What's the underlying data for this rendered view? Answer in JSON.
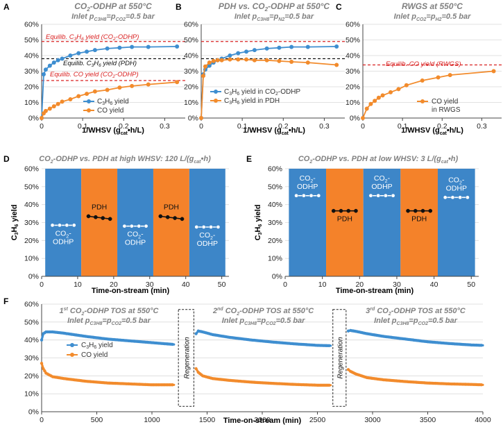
{
  "colors": {
    "blue": "#3e8ed0",
    "orange": "#f28b2c",
    "red": "#d92020",
    "black": "#111111",
    "gray_title": "#808080",
    "bar_blue": "#3d86c8",
    "bar_orange": "#f4822a"
  },
  "chart_data": [
    {
      "id": "A",
      "type": "line",
      "panel_letter": "A",
      "title_lines": [
        "CO2-ODHP at 550°C",
        "Inlet pC3H8=pCO2=0.5 bar"
      ],
      "xlabel": "1/WHSV (gcat•h/L)",
      "ylabel": "",
      "xlim": [
        0,
        0.35
      ],
      "ylim": [
        0,
        60
      ],
      "xticks": [
        0,
        0.1,
        0.2,
        0.3
      ],
      "xtick_labels": [
        "0",
        "0.1",
        "0.2",
        "0.3"
      ],
      "yticks": [
        0,
        10,
        20,
        30,
        40,
        50,
        60
      ],
      "ytick_labels": [
        "0%",
        "10%",
        "20%",
        "30%",
        "40%",
        "50%",
        "60%"
      ],
      "series": [
        {
          "name": "C3H6 yield",
          "color": "blue",
          "x": [
            0,
            0.005,
            0.01,
            0.02,
            0.03,
            0.04,
            0.05,
            0.07,
            0.09,
            0.11,
            0.13,
            0.16,
            0.19,
            0.22,
            0.26,
            0.33
          ],
          "y": [
            0,
            28,
            31,
            33.5,
            35.5,
            37,
            38,
            40,
            41.5,
            42.5,
            43.5,
            44.5,
            45,
            45.5,
            45.5,
            45.8
          ]
        },
        {
          "name": "CO yield",
          "color": "orange",
          "x": [
            0,
            0.005,
            0.01,
            0.02,
            0.03,
            0.04,
            0.05,
            0.07,
            0.09,
            0.11,
            0.13,
            0.16,
            0.19,
            0.22,
            0.26,
            0.33
          ],
          "y": [
            0,
            3,
            4.5,
            6,
            7.5,
            9,
            10.5,
            12,
            14,
            15.5,
            17,
            18,
            19.5,
            20.5,
            21.5,
            23
          ]
        }
      ],
      "hlines": [
        {
          "y": 49,
          "color": "red",
          "label": "Equilib. C3H6 yield (CO2-ODHP)"
        },
        {
          "y": 38,
          "color": "black",
          "label": "Equilib. C3H6 yield (PDH)"
        },
        {
          "y": 24,
          "color": "red",
          "label": "Equilib. CO yield (CO2-ODHP)"
        }
      ],
      "legend": [
        "C3H6 yield",
        "CO yield"
      ],
      "legend_position": "center-right"
    },
    {
      "id": "B",
      "type": "line",
      "panel_letter": "B",
      "title_lines": [
        "PDH vs. CO2-ODHP at 550°C",
        "Inlet pC3H8=pN2=0.5 bar"
      ],
      "xlabel": "1/WHSV (gcat•h/L)",
      "xlim": [
        0,
        0.35
      ],
      "ylim": [
        0,
        60
      ],
      "xticks": [
        0,
        0.1,
        0.2,
        0.3
      ],
      "xtick_labels": [
        "0",
        "0.1",
        "0.2",
        "0.3"
      ],
      "yticks": [
        0,
        10,
        20,
        30,
        40,
        50,
        60
      ],
      "ytick_labels": [
        "0%",
        "10%",
        "20%",
        "30%",
        "40%",
        "50%",
        "60%"
      ],
      "series": [
        {
          "name": "C3H6 yield in CO2-ODHP",
          "color": "blue",
          "x": [
            0,
            0.005,
            0.01,
            0.02,
            0.03,
            0.04,
            0.05,
            0.07,
            0.09,
            0.11,
            0.13,
            0.16,
            0.19,
            0.22,
            0.26,
            0.33
          ],
          "y": [
            0,
            28,
            31,
            33.5,
            35.5,
            37,
            38,
            40,
            41.5,
            42.5,
            43.5,
            44.5,
            45,
            45.5,
            45.5,
            45.8
          ]
        },
        {
          "name": "C3H6 yield in PDH",
          "color": "orange",
          "x": [
            0,
            0.005,
            0.01,
            0.02,
            0.03,
            0.04,
            0.05,
            0.07,
            0.09,
            0.11,
            0.13,
            0.16,
            0.19,
            0.22,
            0.26,
            0.33
          ],
          "y": [
            0,
            27,
            33,
            35.5,
            36.5,
            37,
            37,
            37.5,
            37.5,
            37.5,
            37,
            37,
            36.5,
            36,
            35.5,
            34
          ]
        }
      ],
      "hlines": [
        {
          "y": 49,
          "color": "red"
        },
        {
          "y": 38,
          "color": "black"
        }
      ],
      "legend": [
        "C3H6 yield in CO2-ODHP",
        "C3H6 yield in PDH"
      ],
      "legend_position": "center-right"
    },
    {
      "id": "C",
      "type": "line",
      "panel_letter": "C",
      "title_lines": [
        "RWGS at 550°C",
        "Inlet pCO2=pH2=0.5 bar"
      ],
      "xlabel": "1/WHSV (gcat•h/L)",
      "xlim": [
        0,
        0.35
      ],
      "ylim": [
        0,
        60
      ],
      "xticks": [
        0,
        0.1,
        0.2,
        0.3
      ],
      "xtick_labels": [
        "0",
        "0.1",
        "0.2",
        "0.3"
      ],
      "yticks": [
        0,
        10,
        20,
        30,
        40,
        50,
        60
      ],
      "ytick_labels": [
        "0%",
        "10%",
        "20%",
        "30%",
        "40%",
        "50%",
        "60%"
      ],
      "series": [
        {
          "name": "CO yield in RWGS",
          "color": "orange",
          "x": [
            0,
            0.01,
            0.02,
            0.03,
            0.04,
            0.05,
            0.07,
            0.09,
            0.11,
            0.15,
            0.19,
            0.22,
            0.33
          ],
          "y": [
            0,
            6,
            9,
            11,
            13,
            14.5,
            16.5,
            18.5,
            21,
            24,
            26,
            27.5,
            30
          ]
        }
      ],
      "hlines": [
        {
          "y": 34,
          "color": "red",
          "label": "Equilib. CO yield (RWGS)"
        }
      ],
      "legend": [
        "CO yield",
        "in RWGS"
      ],
      "legend_position": "center-right"
    },
    {
      "id": "D",
      "type": "line",
      "panel_letter": "D",
      "title": "CO2-ODHP vs. PDH at high WHSV: 120 L/(gcat•h)",
      "xlabel": "Time-on-stream (min)",
      "ylabel": "C3H6 yield",
      "xlim": [
        0,
        52
      ],
      "ylim": [
        0,
        60
      ],
      "xticks": [
        0,
        10,
        20,
        30,
        40,
        50
      ],
      "xtick_labels": [
        "0",
        "10",
        "20",
        "30",
        "40",
        "50"
      ],
      "yticks": [
        0,
        10,
        20,
        30,
        40,
        50,
        60
      ],
      "ytick_labels": [
        "0%",
        "10%",
        "20%",
        "30%",
        "40%",
        "50%",
        "60%"
      ],
      "bands": [
        {
          "from": 1,
          "to": 11,
          "type": "CO2-ODHP"
        },
        {
          "from": 11,
          "to": 21,
          "type": "PDH"
        },
        {
          "from": 21,
          "to": 31,
          "type": "CO2-ODHP"
        },
        {
          "from": 31,
          "to": 41,
          "type": "PDH"
        },
        {
          "from": 41,
          "to": 51,
          "type": "CO2-ODHP"
        }
      ],
      "band_labels": [
        "CO2-ODHP",
        "PDH",
        "CO2-ODHP",
        "PDH",
        "CO2-ODHP"
      ],
      "band_label_pos": [
        "below",
        "above",
        "below",
        "above",
        "below"
      ],
      "segments": [
        {
          "x": [
            3,
            5,
            7,
            9
          ],
          "y": [
            28.5,
            28.5,
            28.5,
            28.5
          ],
          "color": "white"
        },
        {
          "x": [
            13,
            15,
            17,
            19
          ],
          "y": [
            33.5,
            33,
            32.5,
            32
          ],
          "color": "black"
        },
        {
          "x": [
            23,
            25,
            27,
            29
          ],
          "y": [
            28,
            28,
            28,
            28
          ],
          "color": "white"
        },
        {
          "x": [
            33,
            35,
            37,
            39
          ],
          "y": [
            33.5,
            33,
            32.5,
            32
          ],
          "color": "black"
        },
        {
          "x": [
            43,
            45,
            47,
            49
          ],
          "y": [
            27.5,
            27.5,
            27.5,
            27.5
          ],
          "color": "white"
        }
      ]
    },
    {
      "id": "E",
      "type": "line",
      "panel_letter": "E",
      "title": "CO2-ODHP vs. PDH at low WHSV: 3 L/(gcat•h)",
      "xlabel": "Time-on-stream (min)",
      "ylabel": "C3H6 yield",
      "xlim": [
        0,
        52
      ],
      "ylim": [
        0,
        60
      ],
      "xticks": [
        0,
        10,
        20,
        30,
        40,
        50
      ],
      "xtick_labels": [
        "0",
        "10",
        "20",
        "30",
        "40",
        "50"
      ],
      "yticks": [
        0,
        10,
        20,
        30,
        40,
        50,
        60
      ],
      "ytick_labels": [
        "0%",
        "10%",
        "20%",
        "30%",
        "40%",
        "50%",
        "60%"
      ],
      "bands": [
        {
          "from": 1,
          "to": 11,
          "type": "CO2-ODHP"
        },
        {
          "from": 11,
          "to": 21,
          "type": "PDH"
        },
        {
          "from": 21,
          "to": 31,
          "type": "CO2-ODHP"
        },
        {
          "from": 31,
          "to": 41,
          "type": "PDH"
        },
        {
          "from": 41,
          "to": 51,
          "type": "CO2-ODHP"
        }
      ],
      "band_labels": [
        "CO2-ODHP",
        "PDH",
        "CO2-ODHP",
        "PDH",
        "CO2-ODHP"
      ],
      "band_label_pos": [
        "above",
        "below",
        "above",
        "below",
        "above"
      ],
      "segments": [
        {
          "x": [
            3,
            5,
            7,
            9
          ],
          "y": [
            45,
            45,
            45,
            45
          ],
          "color": "white"
        },
        {
          "x": [
            13,
            15,
            17,
            19
          ],
          "y": [
            36.5,
            36.5,
            36.5,
            36.5
          ],
          "color": "black"
        },
        {
          "x": [
            23,
            25,
            27,
            29
          ],
          "y": [
            45,
            45,
            45,
            45
          ],
          "color": "white"
        },
        {
          "x": [
            33,
            35,
            37,
            39
          ],
          "y": [
            36.5,
            36.5,
            36.5,
            36.5
          ],
          "color": "black"
        },
        {
          "x": [
            43,
            45,
            47,
            49
          ],
          "y": [
            44,
            44,
            44,
            44
          ],
          "color": "white"
        }
      ]
    },
    {
      "id": "F",
      "type": "line",
      "panel_letter": "F",
      "xlabel": "Time-on-stream (min)",
      "xlim": [
        0,
        4000
      ],
      "ylim": [
        0,
        60
      ],
      "xticks": [
        0,
        500,
        1000,
        1500,
        2000,
        2500,
        3000,
        3500,
        4000
      ],
      "xtick_labels": [
        "0",
        "500",
        "1000",
        "1500",
        "2000",
        "2500",
        "3000",
        "3500",
        "4000"
      ],
      "yticks": [
        0,
        10,
        20,
        30,
        40,
        50,
        60
      ],
      "ytick_labels": [
        "0%",
        "10%",
        "20%",
        "30%",
        "40%",
        "50%",
        "60%"
      ],
      "cycles": [
        {
          "ordinal": "1st",
          "title": "CO2-ODHP TOS at 550°C",
          "inlet": "Inlet pC3H8=pCO2=0.5 bar",
          "start": 0,
          "end": 1220,
          "c3h6": [
            [
              0,
              40
            ],
            [
              15,
              43.5
            ],
            [
              40,
              44.5
            ],
            [
              100,
              44.5
            ],
            [
              200,
              43.8
            ],
            [
              400,
              42
            ],
            [
              600,
              40.5
            ],
            [
              800,
              39.5
            ],
            [
              1000,
              38.5
            ],
            [
              1200,
              37.5
            ]
          ],
          "co": [
            [
              0,
              27
            ],
            [
              15,
              24
            ],
            [
              40,
              21.5
            ],
            [
              100,
              19.5
            ],
            [
              200,
              18.5
            ],
            [
              400,
              17
            ],
            [
              600,
              16
            ],
            [
              800,
              15.5
            ],
            [
              1000,
              15
            ],
            [
              1200,
              15
            ]
          ]
        },
        {
          "ordinal": "2nd",
          "title": "CO2-ODHP TOS at 550°C",
          "inlet": "Inlet pC3H8=pCO2=0.5 bar",
          "start": 1400,
          "end": 2620,
          "c3h6": [
            [
              1400,
              43.5
            ],
            [
              1420,
              45
            ],
            [
              1460,
              44.5
            ],
            [
              1550,
              43
            ],
            [
              1700,
              41.5
            ],
            [
              1900,
              40
            ],
            [
              2100,
              38.8
            ],
            [
              2300,
              37.8
            ],
            [
              2500,
              37
            ],
            [
              2620,
              36.8
            ]
          ],
          "co": [
            [
              1400,
              24
            ],
            [
              1420,
              22
            ],
            [
              1460,
              20
            ],
            [
              1550,
              18.5
            ],
            [
              1700,
              17.5
            ],
            [
              1900,
              16.5
            ],
            [
              2100,
              15.8
            ],
            [
              2300,
              15.2
            ],
            [
              2500,
              14.8
            ],
            [
              2620,
              14.8
            ]
          ]
        },
        {
          "ordinal": "3rd",
          "title": "CO2-ODHP TOS at 550°C",
          "inlet": "Inlet pC3H8=pCO2=0.5 bar",
          "start": 2780,
          "end": 4000,
          "c3h6": [
            [
              2780,
              45
            ],
            [
              2800,
              45.3
            ],
            [
              2850,
              44.8
            ],
            [
              2950,
              43.5
            ],
            [
              3100,
              42
            ],
            [
              3300,
              40.5
            ],
            [
              3500,
              39
            ],
            [
              3700,
              38
            ],
            [
              3900,
              37.2
            ],
            [
              4000,
              37
            ]
          ],
          "co": [
            [
              2780,
              23.5
            ],
            [
              2800,
              22.5
            ],
            [
              2850,
              21
            ],
            [
              2950,
              19
            ],
            [
              3100,
              17.8
            ],
            [
              3300,
              16.8
            ],
            [
              3500,
              16
            ],
            [
              3700,
              15.5
            ],
            [
              3900,
              15.2
            ],
            [
              4000,
              15
            ]
          ]
        }
      ],
      "regeneration_label": "Regeneration",
      "regenerations": [
        {
          "from": 1240,
          "to": 1380
        },
        {
          "from": 2640,
          "to": 2760
        }
      ],
      "legend": [
        "C3H6 yield",
        "CO yield"
      ],
      "legend_position": "upper-left"
    }
  ]
}
